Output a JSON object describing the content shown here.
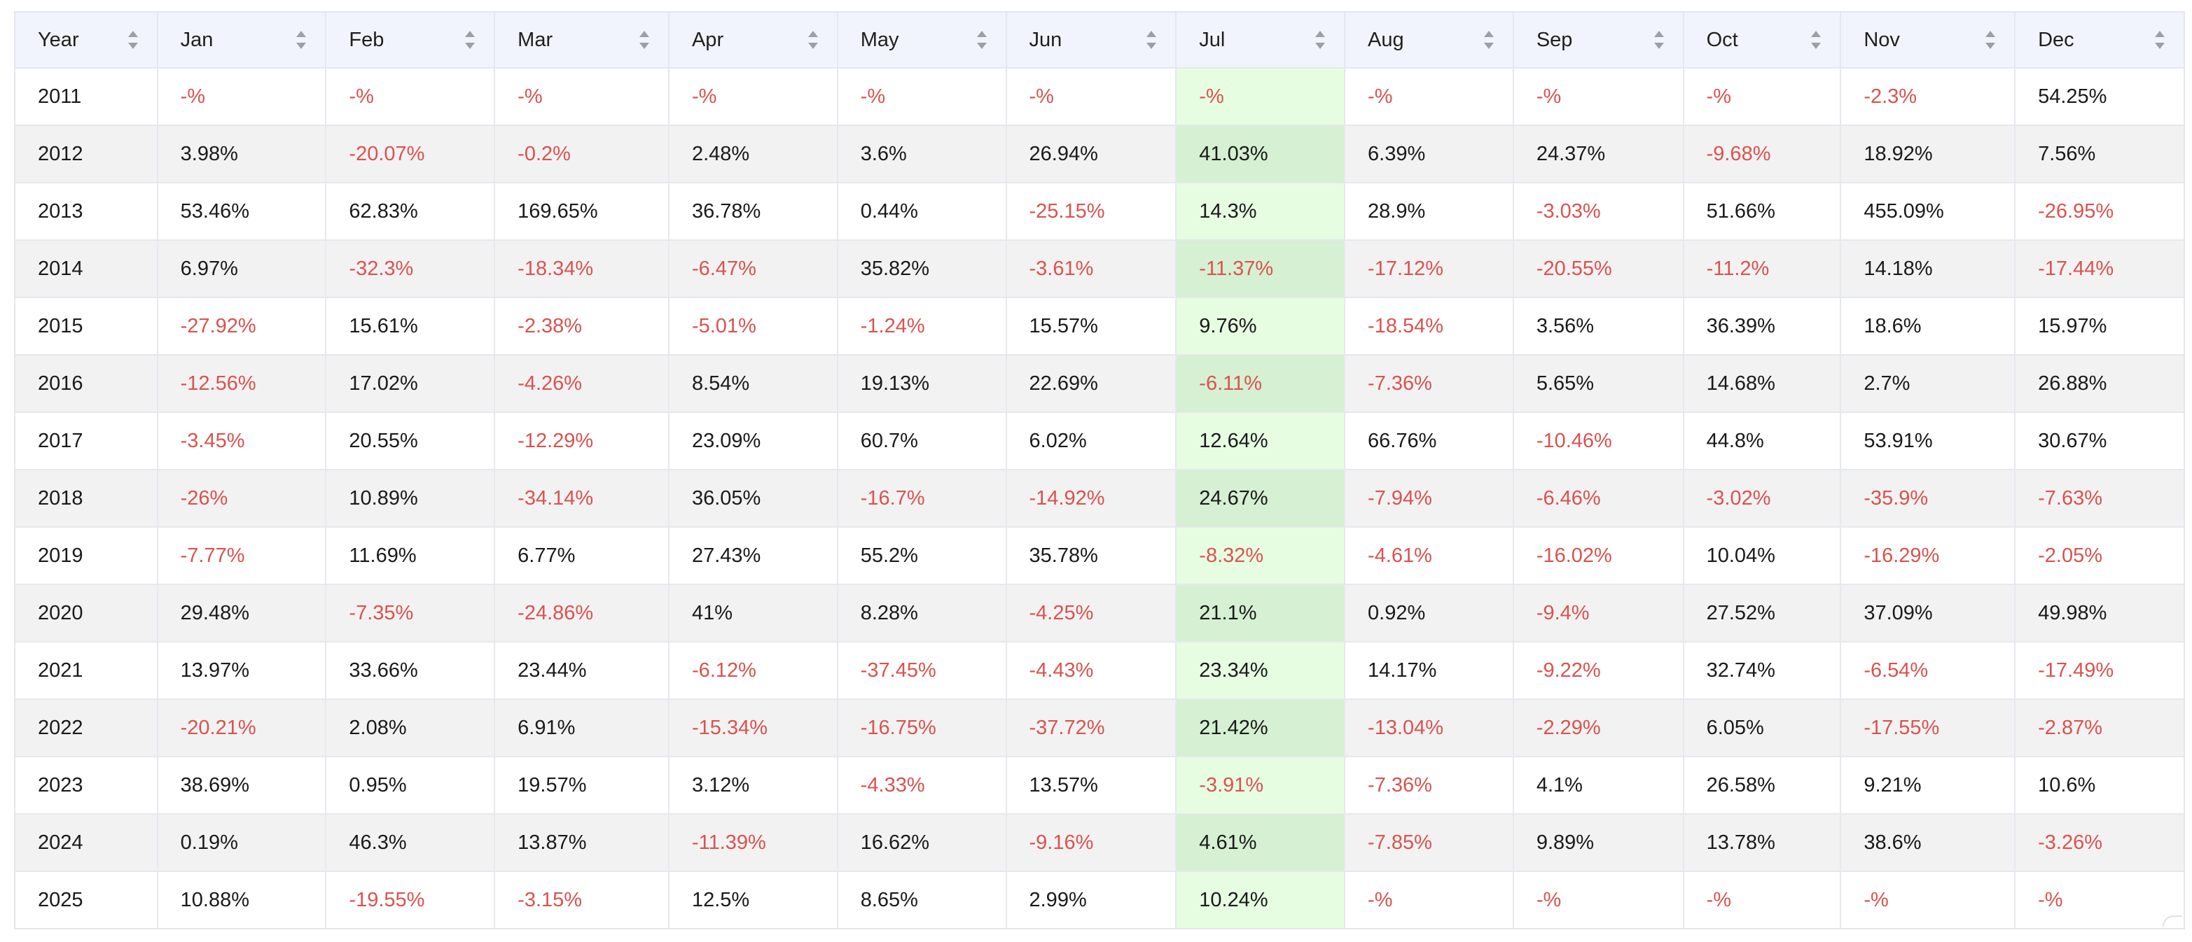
{
  "table": {
    "headers": [
      "Year",
      "Jan",
      "Feb",
      "Mar",
      "Apr",
      "May",
      "Jun",
      "Jul",
      "Aug",
      "Sep",
      "Oct",
      "Nov",
      "Dec"
    ],
    "highlight_column": "Jul",
    "colors": {
      "header_bg": "#f2f4fd",
      "alt_row_bg": "#f2f2f2",
      "highlight_bg": "#e6fde2",
      "highlight_alt_bg": "#d5f0d2",
      "negative_text": "#d9534f",
      "positive_text": "#1a1a1a"
    },
    "rows": [
      [
        "2011",
        "-%",
        "-%",
        "-%",
        "-%",
        "-%",
        "-%",
        "-%",
        "-%",
        "-%",
        "-%",
        "-2.3%",
        "54.25%"
      ],
      [
        "2012",
        "3.98%",
        "-20.07%",
        "-0.2%",
        "2.48%",
        "3.6%",
        "26.94%",
        "41.03%",
        "6.39%",
        "24.37%",
        "-9.68%",
        "18.92%",
        "7.56%"
      ],
      [
        "2013",
        "53.46%",
        "62.83%",
        "169.65%",
        "36.78%",
        "0.44%",
        "-25.15%",
        "14.3%",
        "28.9%",
        "-3.03%",
        "51.66%",
        "455.09%",
        "-26.95%"
      ],
      [
        "2014",
        "6.97%",
        "-32.3%",
        "-18.34%",
        "-6.47%",
        "35.82%",
        "-3.61%",
        "-11.37%",
        "-17.12%",
        "-20.55%",
        "-11.2%",
        "14.18%",
        "-17.44%"
      ],
      [
        "2015",
        "-27.92%",
        "15.61%",
        "-2.38%",
        "-5.01%",
        "-1.24%",
        "15.57%",
        "9.76%",
        "-18.54%",
        "3.56%",
        "36.39%",
        "18.6%",
        "15.97%"
      ],
      [
        "2016",
        "-12.56%",
        "17.02%",
        "-4.26%",
        "8.54%",
        "19.13%",
        "22.69%",
        "-6.11%",
        "-7.36%",
        "5.65%",
        "14.68%",
        "2.7%",
        "26.88%"
      ],
      [
        "2017",
        "-3.45%",
        "20.55%",
        "-12.29%",
        "23.09%",
        "60.7%",
        "6.02%",
        "12.64%",
        "66.76%",
        "-10.46%",
        "44.8%",
        "53.91%",
        "30.67%"
      ],
      [
        "2018",
        "-26%",
        "10.89%",
        "-34.14%",
        "36.05%",
        "-16.7%",
        "-14.92%",
        "24.67%",
        "-7.94%",
        "-6.46%",
        "-3.02%",
        "-35.9%",
        "-7.63%"
      ],
      [
        "2019",
        "-7.77%",
        "11.69%",
        "6.77%",
        "27.43%",
        "55.2%",
        "35.78%",
        "-8.32%",
        "-4.61%",
        "-16.02%",
        "10.04%",
        "-16.29%",
        "-2.05%"
      ],
      [
        "2020",
        "29.48%",
        "-7.35%",
        "-24.86%",
        "41%",
        "8.28%",
        "-4.25%",
        "21.1%",
        "0.92%",
        "-9.4%",
        "27.52%",
        "37.09%",
        "49.98%"
      ],
      [
        "2021",
        "13.97%",
        "33.66%",
        "23.44%",
        "-6.12%",
        "-37.45%",
        "-4.43%",
        "23.34%",
        "14.17%",
        "-9.22%",
        "32.74%",
        "-6.54%",
        "-17.49%"
      ],
      [
        "2022",
        "-20.21%",
        "2.08%",
        "6.91%",
        "-15.34%",
        "-16.75%",
        "-37.72%",
        "21.42%",
        "-13.04%",
        "-2.29%",
        "6.05%",
        "-17.55%",
        "-2.87%"
      ],
      [
        "2023",
        "38.69%",
        "0.95%",
        "19.57%",
        "3.12%",
        "-4.33%",
        "13.57%",
        "-3.91%",
        "-7.36%",
        "4.1%",
        "26.58%",
        "9.21%",
        "10.6%"
      ],
      [
        "2024",
        "0.19%",
        "46.3%",
        "13.87%",
        "-11.39%",
        "16.62%",
        "-9.16%",
        "4.61%",
        "-7.85%",
        "9.89%",
        "13.78%",
        "38.6%",
        "-3.26%"
      ],
      [
        "2025",
        "10.88%",
        "-19.55%",
        "-3.15%",
        "12.5%",
        "8.65%",
        "2.99%",
        "10.24%",
        "-%",
        "-%",
        "-%",
        "-%",
        "-%"
      ]
    ]
  },
  "icons": {
    "sort": "sort-arrows-icon"
  }
}
